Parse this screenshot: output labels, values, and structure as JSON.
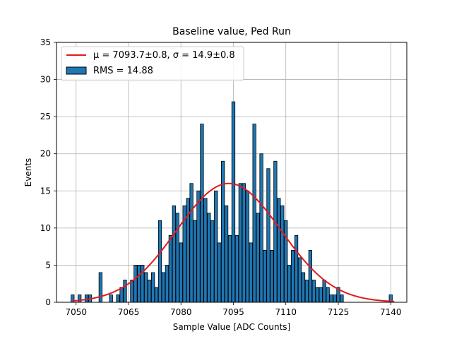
{
  "chart_data": {
    "type": "bar",
    "title": "Baseline value, Ped Run",
    "xlabel": "Sample Value [ADC Counts]",
    "ylabel": "Events",
    "xlim": [
      7044.4,
      7144.6
    ],
    "ylim": [
      0,
      35
    ],
    "xticks": [
      7050,
      7065,
      7080,
      7095,
      7110,
      7125,
      7140
    ],
    "yticks": [
      0,
      5,
      10,
      15,
      20,
      25,
      30,
      35
    ],
    "grid": true,
    "legend_position": "upper-left",
    "bin_width": 0.9,
    "series": [
      {
        "name": "RMS = 14.88",
        "kind": "histogram",
        "color": "#1f77b4",
        "edgecolor": "#000000",
        "x": [
          7049,
          7050,
          7051,
          7052,
          7053,
          7054,
          7055,
          7056,
          7057,
          7058,
          7059,
          7060,
          7061,
          7062,
          7063,
          7064,
          7065,
          7066,
          7067,
          7068,
          7069,
          7070,
          7071,
          7072,
          7073,
          7074,
          7075,
          7076,
          7077,
          7078,
          7079,
          7080,
          7081,
          7082,
          7083,
          7084,
          7085,
          7086,
          7087,
          7088,
          7089,
          7090,
          7091,
          7092,
          7093,
          7094,
          7095,
          7096,
          7097,
          7098,
          7099,
          7100,
          7101,
          7102,
          7103,
          7104,
          7105,
          7106,
          7107,
          7108,
          7109,
          7110,
          7111,
          7112,
          7113,
          7114,
          7115,
          7116,
          7117,
          7118,
          7119,
          7120,
          7121,
          7122,
          7123,
          7124,
          7125,
          7126,
          7127,
          7128,
          7129,
          7130,
          7131,
          7132,
          7133,
          7134,
          7135,
          7136,
          7137,
          7138,
          7139,
          7140
        ],
        "values": [
          1,
          0,
          1,
          0,
          1,
          1,
          0,
          0,
          4,
          0,
          0,
          1,
          0,
          1,
          2,
          3,
          0,
          3,
          5,
          5,
          5,
          4,
          3,
          4,
          2,
          11,
          4,
          5,
          9,
          13,
          12,
          8,
          13,
          14,
          16,
          11,
          15,
          24,
          14,
          12,
          11,
          15,
          8,
          19,
          13,
          9,
          27,
          9,
          16,
          16,
          15,
          8,
          24,
          12,
          20,
          7,
          18,
          7,
          19,
          14,
          13,
          11,
          5,
          7,
          9,
          6,
          4,
          3,
          7,
          3,
          2,
          2,
          3,
          2,
          1,
          1,
          2,
          1,
          0,
          0,
          0,
          0,
          0,
          0,
          0,
          0,
          0,
          0,
          0,
          0,
          0,
          1
        ]
      },
      {
        "name": "fit",
        "kind": "gaussian-fit",
        "color": "#e31a1c",
        "mu": 7093.7,
        "sigma": 14.9,
        "peak": 16.0,
        "x_range": [
          7049,
          7141
        ]
      }
    ],
    "legend": [
      {
        "label": "μ = 7093.7±0.8, σ = 14.9±0.8",
        "type": "line",
        "color": "#e31a1c"
      },
      {
        "label": "RMS = 14.88",
        "type": "patch",
        "color": "#1f77b4"
      }
    ]
  }
}
